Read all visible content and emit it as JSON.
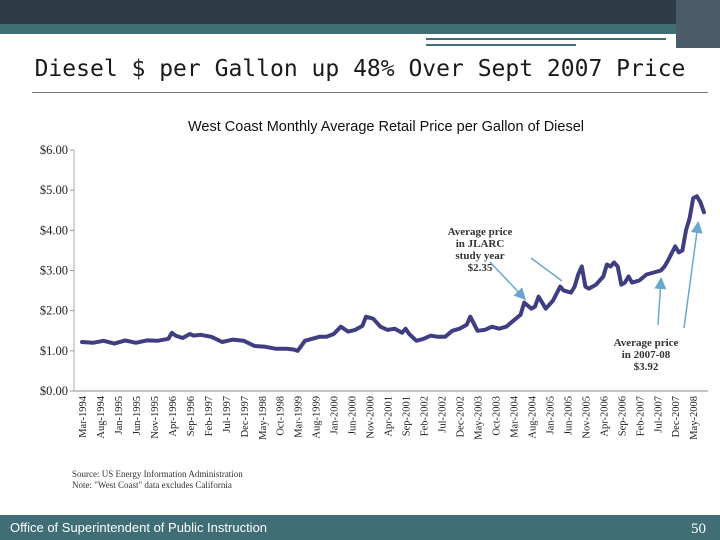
{
  "slide": {
    "title": "Diesel $ per Gallon up 48% Over Sept 2007 Price",
    "footer": "Office of Superintendent of Public Instruction",
    "page_number": "50"
  },
  "colors": {
    "series": "#3e3e80",
    "arrow": "#6aa7cf",
    "footer": "#3f6e76"
  },
  "chart_data": {
    "type": "line",
    "title": "West Coast Monthly Average Retail Price per Gallon of Diesel",
    "xlabel": "",
    "ylabel": "",
    "ylim": [
      0,
      6
    ],
    "y_ticks": [
      0,
      1,
      2,
      3,
      4,
      5,
      6
    ],
    "y_tick_labels": [
      "$0.00",
      "$1.00",
      "$2.00",
      "$3.00",
      "$4.00",
      "$5.00",
      "$6.00"
    ],
    "grid": false,
    "x_tick_labels": [
      "Mar-1994",
      "Aug-1994",
      "Jan-1995",
      "Jun-1995",
      "Nov-1995",
      "Apr-1996",
      "Sep-1996",
      "Feb-1997",
      "Jul-1997",
      "Dec-1997",
      "May-1998",
      "Oct-1998",
      "Mar-1999",
      "Aug-1999",
      "Jan-2000",
      "Jun-2000",
      "Nov-2000",
      "Apr-2001",
      "Sep-2001",
      "Feb-2002",
      "Jul-2002",
      "Dec-2002",
      "May-2003",
      "Oct-2003",
      "Mar-2004",
      "Aug-2004",
      "Jan-2005",
      "Jun-2005",
      "Nov-2005",
      "Apr-2006",
      "Sep-2006",
      "Feb-2007",
      "Jul-2007",
      "Dec-2007",
      "May-2008"
    ],
    "series": [
      {
        "x": [
          "1994-03",
          "1994-06",
          "1994-09",
          "1994-12",
          "1995-03",
          "1995-06",
          "1995-09",
          "1995-12",
          "1996-03",
          "1996-04",
          "1996-05",
          "1996-07",
          "1996-09",
          "1996-10",
          "1996-12",
          "1997-03",
          "1997-06",
          "1997-09",
          "1997-12",
          "1998-03",
          "1998-06",
          "1998-09",
          "1998-12",
          "1999-02",
          "1999-03",
          "1999-05",
          "1999-07",
          "1999-09",
          "1999-11",
          "2000-01",
          "2000-03",
          "2000-05",
          "2000-07",
          "2000-09",
          "2000-10",
          "2000-12",
          "2001-02",
          "2001-04",
          "2001-06",
          "2001-08",
          "2001-09",
          "2001-10",
          "2001-12",
          "2002-02",
          "2002-04",
          "2002-06",
          "2002-08",
          "2002-10",
          "2002-12",
          "2003-02",
          "2003-03",
          "2003-05",
          "2003-07",
          "2003-09",
          "2003-11",
          "2004-01",
          "2004-03",
          "2004-05",
          "2004-06",
          "2004-08",
          "2004-09",
          "2004-10",
          "2004-12",
          "2005-02",
          "2005-04",
          "2005-05",
          "2005-07",
          "2005-08",
          "2005-09",
          "2005-10",
          "2005-11",
          "2005-12",
          "2006-02",
          "2006-04",
          "2006-05",
          "2006-06",
          "2006-07",
          "2006-08",
          "2006-09",
          "2006-10",
          "2006-11",
          "2006-12",
          "2007-02",
          "2007-04",
          "2007-06",
          "2007-08",
          "2007-09",
          "2007-10",
          "2007-12",
          "2008-01",
          "2008-02",
          "2008-03",
          "2008-04",
          "2008-05",
          "2008-06",
          "2008-07",
          "2008-08"
        ],
        "values": [
          1.22,
          1.2,
          1.25,
          1.18,
          1.26,
          1.2,
          1.26,
          1.25,
          1.3,
          1.45,
          1.38,
          1.32,
          1.42,
          1.38,
          1.4,
          1.35,
          1.22,
          1.28,
          1.25,
          1.12,
          1.1,
          1.05,
          1.05,
          1.03,
          1.0,
          1.25,
          1.3,
          1.35,
          1.35,
          1.42,
          1.6,
          1.48,
          1.52,
          1.62,
          1.85,
          1.8,
          1.6,
          1.52,
          1.55,
          1.45,
          1.55,
          1.42,
          1.25,
          1.3,
          1.38,
          1.35,
          1.35,
          1.5,
          1.55,
          1.65,
          1.85,
          1.5,
          1.52,
          1.6,
          1.55,
          1.6,
          1.75,
          1.9,
          2.2,
          2.05,
          2.1,
          2.35,
          2.05,
          2.25,
          2.6,
          2.5,
          2.45,
          2.6,
          2.9,
          3.1,
          2.6,
          2.55,
          2.65,
          2.85,
          3.15,
          3.1,
          3.2,
          3.1,
          2.65,
          2.7,
          2.85,
          2.7,
          2.75,
          2.9,
          2.95,
          3.0,
          3.1,
          3.25,
          3.6,
          3.45,
          3.5,
          4.0,
          4.3,
          4.8,
          4.85,
          4.7,
          4.45
        ]
      }
    ],
    "annotations": [
      {
        "id": "jlarc",
        "lines": [
          "Average price",
          "in JLARC",
          "study year",
          "$2.35"
        ]
      },
      {
        "id": "current",
        "lines": [
          "Average price",
          "in 2007-08",
          "$3.92"
        ]
      }
    ],
    "source_note": [
      "Source:  US Energy Information Administration",
      "Note: \"West Coast\" data excludes California"
    ]
  }
}
